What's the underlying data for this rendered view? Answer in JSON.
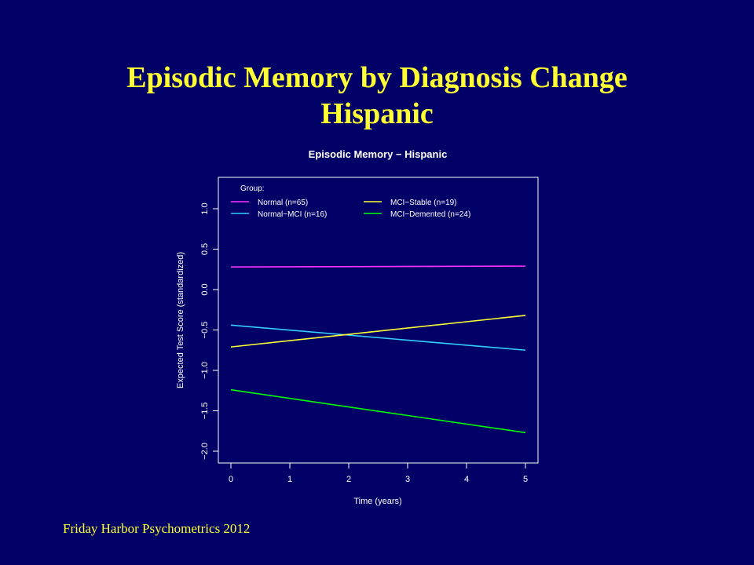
{
  "slide": {
    "title_line1": "Episodic Memory by Diagnosis Change",
    "title_line2": "Hispanic",
    "footer": "Friday Harbor Psychometrics 2012"
  },
  "colors": {
    "background": "#000066",
    "title": "#ffff33",
    "axis": "#ffffff"
  },
  "chart_data": {
    "type": "line",
    "title": "Episodic Memory − Hispanic",
    "xlabel": "Time (years)",
    "ylabel": "Expected Test Score (standardized)",
    "xlim": [
      0,
      5
    ],
    "ylim": [
      -2.1,
      1.35
    ],
    "x_ticks": [
      0,
      1,
      2,
      3,
      4,
      5
    ],
    "y_ticks": [
      -2.0,
      -1.5,
      -1.0,
      -0.5,
      0.0,
      0.5,
      1.0
    ],
    "y_tick_labels": [
      "−2.0",
      "−1.5",
      "−1.0",
      "−0.5",
      "0.0",
      "0.5",
      "1.0"
    ],
    "legend_title": "Group:",
    "legend_position": "top-left",
    "grid": false,
    "series": [
      {
        "name": "Normal (n=65)",
        "color": "#ff33ff",
        "x": [
          0,
          5
        ],
        "y": [
          0.28,
          0.29
        ]
      },
      {
        "name": "Normal−MCI (n=16)",
        "color": "#33ccff",
        "x": [
          0,
          5
        ],
        "y": [
          -0.44,
          -0.75
        ]
      },
      {
        "name": "MCI−Stable (n=19)",
        "color": "#ffff33",
        "x": [
          0,
          5
        ],
        "y": [
          -0.71,
          -0.32
        ]
      },
      {
        "name": "MCI−Demented (n=24)",
        "color": "#00ff00",
        "x": [
          0,
          5
        ],
        "y": [
          -1.24,
          -1.77
        ]
      }
    ]
  }
}
